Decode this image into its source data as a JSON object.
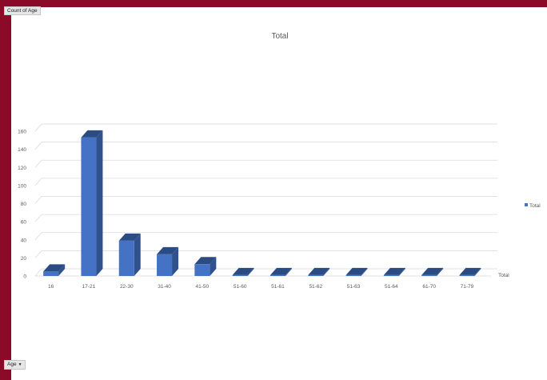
{
  "pivot": {
    "value_field_button": "Count of Age",
    "axis_field_button": "Age"
  },
  "icons": {
    "dropdown": "dropdown-arrow-icon"
  },
  "colors": {
    "frame": "#8b0a28",
    "bar_front": "#4472c4",
    "bar_side": "#2f528f",
    "bar_top": "#2b4c83",
    "gridline": "#d9d9d9"
  },
  "chart_data": {
    "type": "bar",
    "title": "Total",
    "categories": [
      "16",
      "17-21",
      "22-30",
      "31-40",
      "41-50",
      "51-60",
      "51-61",
      "51-62",
      "51-63",
      "51-64",
      "61-70",
      "71-79"
    ],
    "series": [
      {
        "name": "Total",
        "values": [
          5,
          153,
          39,
          24,
          13,
          1,
          1,
          1,
          1,
          1,
          1,
          1
        ]
      }
    ],
    "axis_series_label": "Total",
    "ylim": [
      0,
      160
    ],
    "yticks": [
      0,
      20,
      40,
      60,
      80,
      100,
      120,
      140,
      160
    ],
    "grid": true,
    "legend": "right",
    "style": "3d-column"
  }
}
